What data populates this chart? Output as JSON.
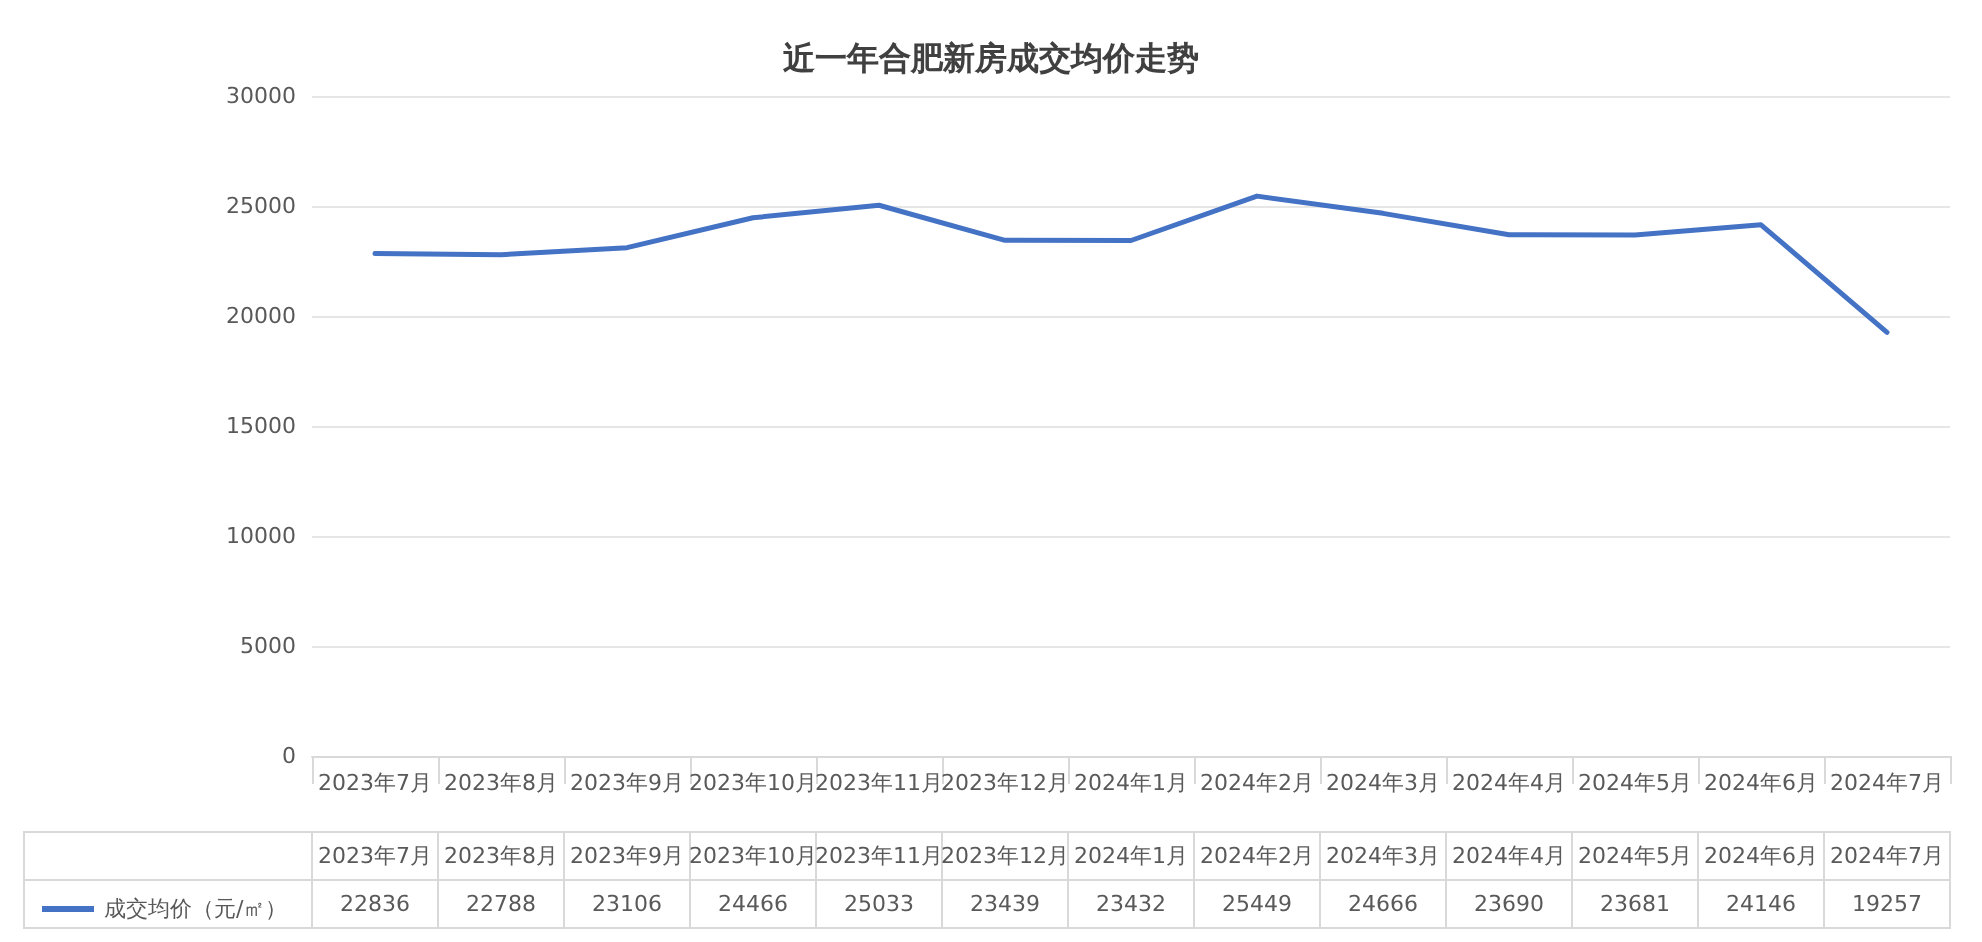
{
  "chart_data": {
    "type": "line",
    "title": "近一年合肥新房成交均价走势",
    "categories": [
      "2023年7月",
      "2023年8月",
      "2023年9月",
      "2023年10月",
      "2023年11月",
      "2023年12月",
      "2024年1月",
      "2024年2月",
      "2024年3月",
      "2024年4月",
      "2024年5月",
      "2024年6月",
      "2024年7月"
    ],
    "series": [
      {
        "name": "成交均价（元/㎡）",
        "color": "#4472c4",
        "values": [
          22836,
          22788,
          23106,
          24466,
          25033,
          23439,
          23432,
          25449,
          24666,
          23690,
          23681,
          24146,
          19257
        ]
      }
    ],
    "ylim": [
      0,
      30000
    ],
    "yticks": [
      0,
      5000,
      10000,
      15000,
      20000,
      25000,
      30000
    ],
    "grid": "y",
    "legend": "bottom left",
    "data_labels": true,
    "marker": "none",
    "line_style": "solid"
  }
}
